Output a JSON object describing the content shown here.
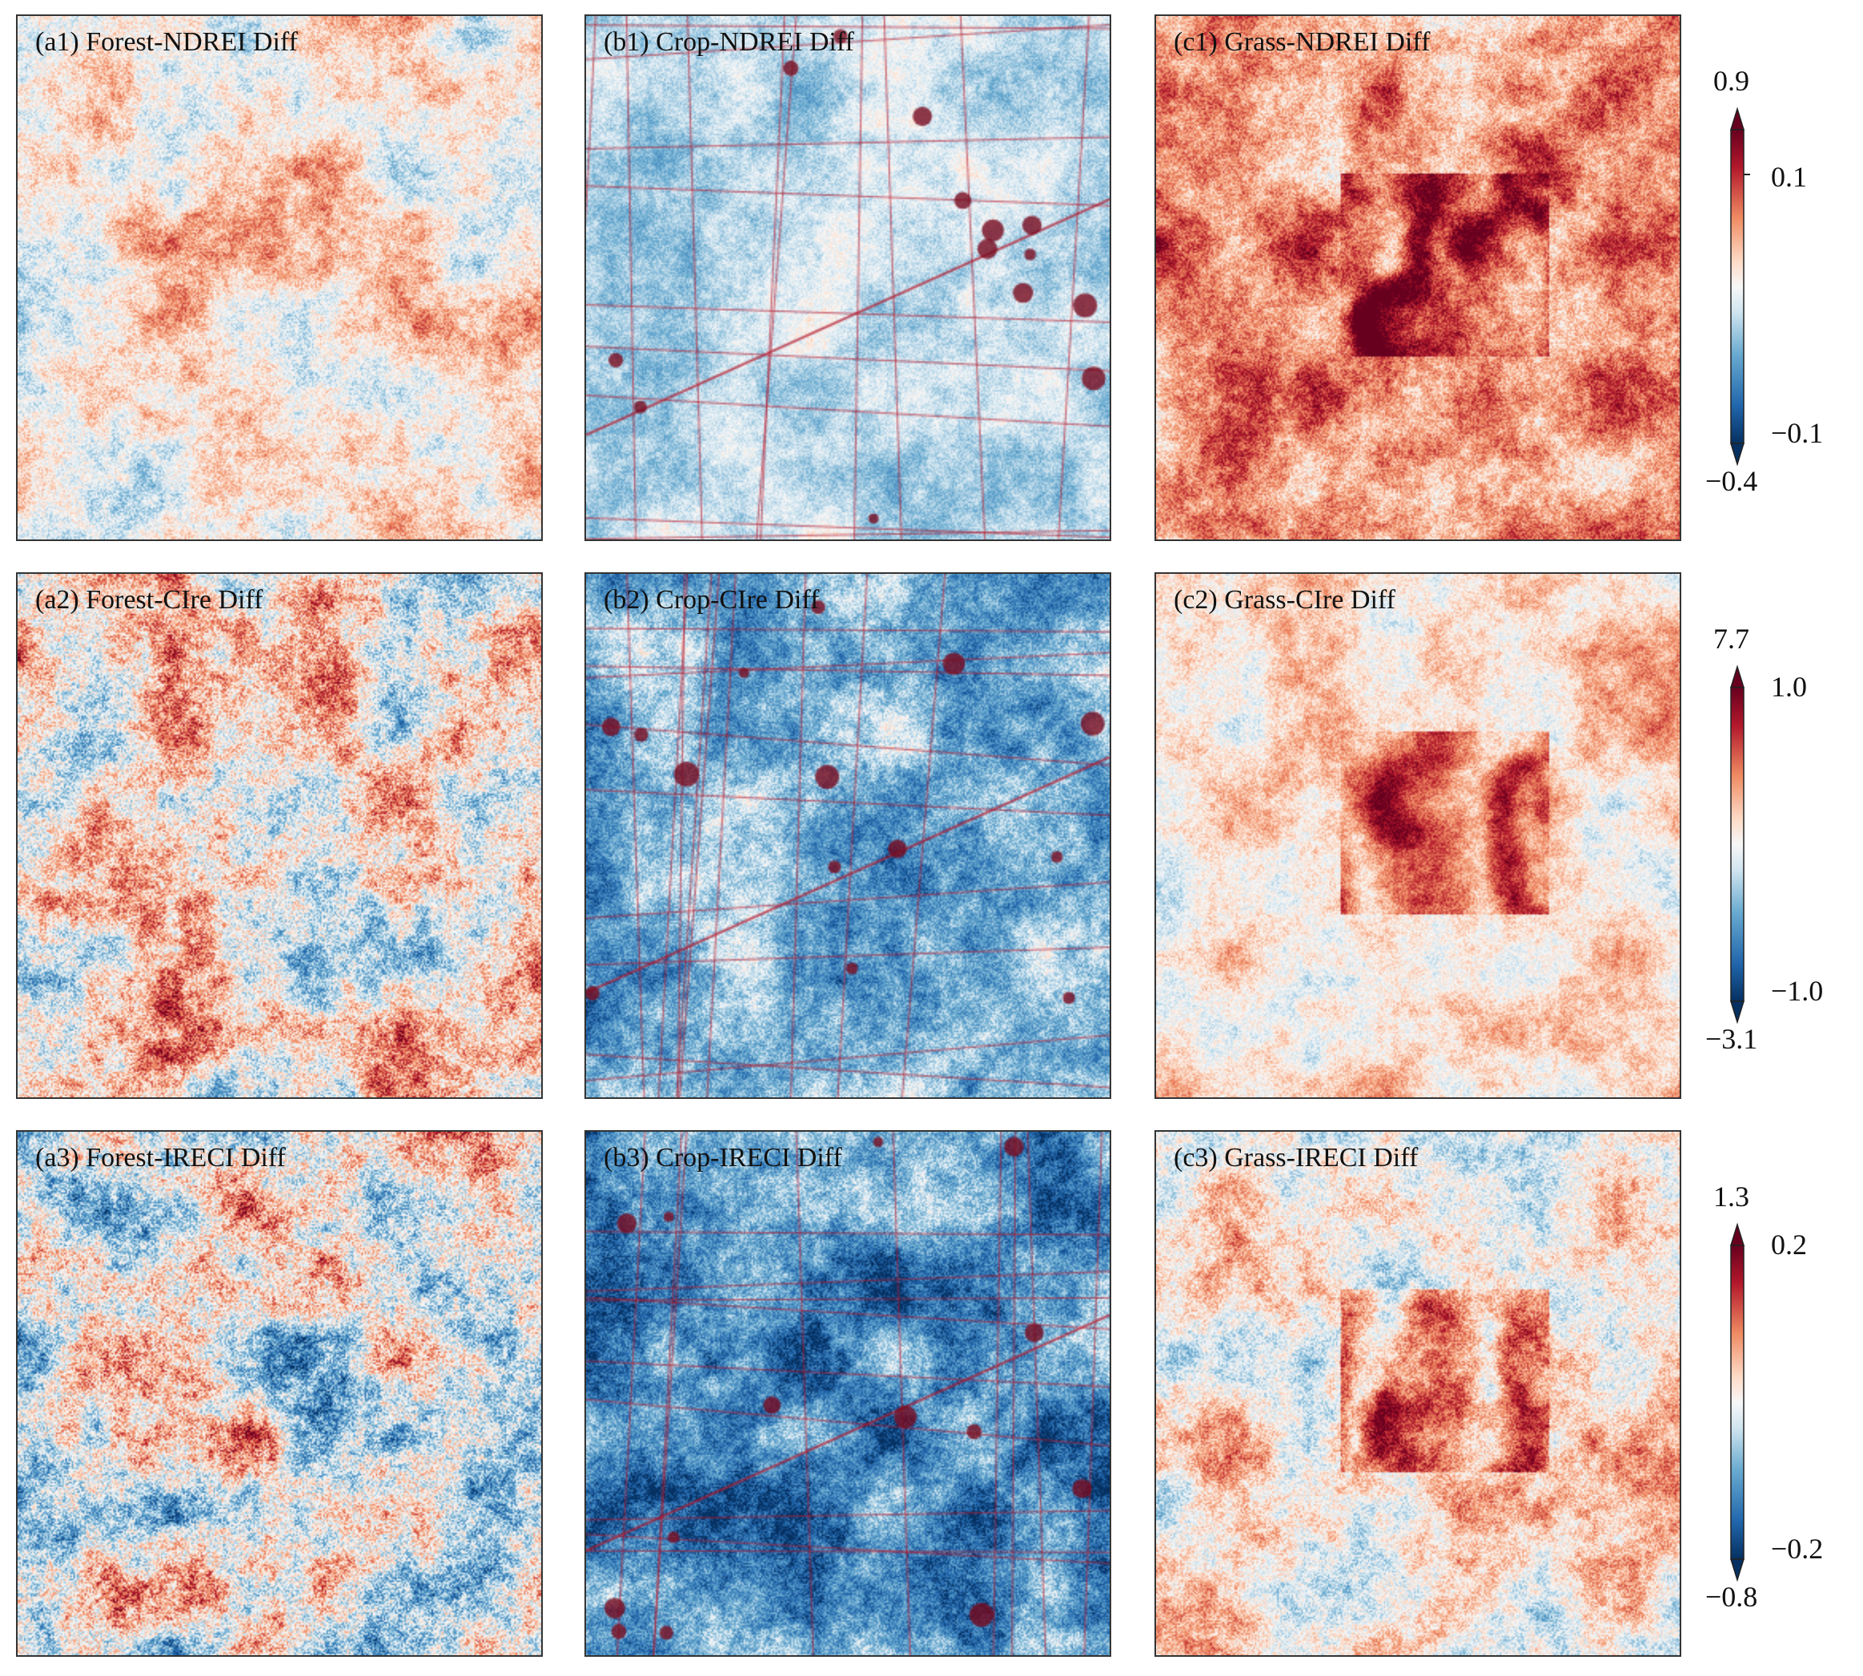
{
  "chart_data": {
    "type": "heatmap",
    "colormap": "RdBu_r (diverging red-white-blue)",
    "layout": "3x3 grid with one colorbar per row",
    "panels": [
      {
        "label": "(a1) Forest-NDREI Diff",
        "row": 1,
        "col": 1,
        "cover": "Forest",
        "index": "NDREI"
      },
      {
        "label": "(b1) Crop-NDREI Diff",
        "row": 1,
        "col": 2,
        "cover": "Crop",
        "index": "NDREI"
      },
      {
        "label": "(c1) Grass-NDREI Diff",
        "row": 1,
        "col": 3,
        "cover": "Grass",
        "index": "NDREI"
      },
      {
        "label": "(a2) Forest-CIre Diff",
        "row": 2,
        "col": 1,
        "cover": "Forest",
        "index": "CIre"
      },
      {
        "label": "(b2) Crop-CIre Diff",
        "row": 2,
        "col": 2,
        "cover": "Crop",
        "index": "CIre"
      },
      {
        "label": "(c2) Grass-CIre Diff",
        "row": 2,
        "col": 3,
        "cover": "Grass",
        "index": "CIre"
      },
      {
        "label": "(a3) Forest-IRECI Diff",
        "row": 3,
        "col": 1,
        "cover": "Forest",
        "index": "IRECI"
      },
      {
        "label": "(b3) Crop-IRECI Diff",
        "row": 3,
        "col": 2,
        "cover": "Crop",
        "index": "IRECI"
      },
      {
        "label": "(c3) Grass-IRECI Diff",
        "row": 3,
        "col": 3,
        "cover": "Grass",
        "index": "IRECI"
      }
    ],
    "colorbars": [
      {
        "row": 1,
        "data_max": "0.9",
        "data_min": "-0.4",
        "tick_max": "0.1",
        "tick_min": "−0.1",
        "range": [
          -0.1,
          0.1
        ],
        "extend": "both"
      },
      {
        "row": 2,
        "data_max": "7.7",
        "data_min": "-3.1",
        "tick_max": "1.0",
        "tick_min": "−1.0",
        "range": [
          -1.0,
          1.0
        ],
        "extend": "both"
      },
      {
        "row": 3,
        "data_max": "1.3",
        "data_min": "-0.8",
        "tick_max": "0.2",
        "tick_min": "−0.2",
        "range": [
          -0.2,
          0.2
        ],
        "extend": "both"
      }
    ]
  },
  "colorbar_display": {
    "row1": {
      "data_max": "0.9",
      "data_min": "−0.4",
      "tick_max": "0.1",
      "tick_min": "−0.1"
    },
    "row2": {
      "data_max": "7.7",
      "data_min": "−3.1",
      "tick_max": "1.0",
      "tick_min": "−1.0"
    },
    "row3": {
      "data_max": "1.3",
      "data_min": "−0.8",
      "tick_max": "0.2",
      "tick_min": "−0.2"
    }
  },
  "colors": {
    "dark_red": "#67001f",
    "red": "#b2182b",
    "light_red": "#ef8a62",
    "pale_red": "#fddbc7",
    "white": "#f7f7f7",
    "pale_blue": "#d1e5f0",
    "light_blue": "#67a9cf",
    "blue": "#2166ac",
    "dark_blue": "#053061"
  }
}
